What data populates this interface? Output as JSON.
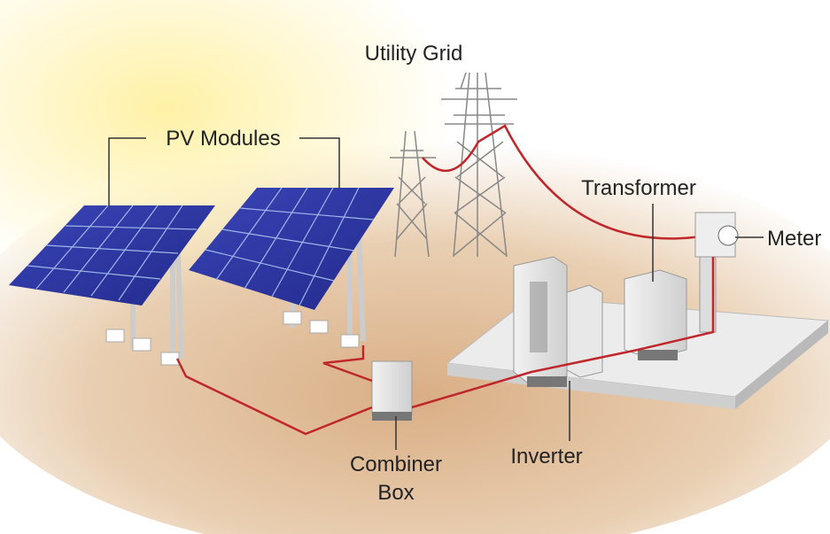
{
  "nodes": [
    {
      "label": "Utility Grid"
    },
    {
      "label": "PV Modules"
    },
    {
      "label": "Transformer"
    },
    {
      "label": "Meter"
    },
    {
      "label": [
        "Combiner",
        "Box"
      ]
    },
    {
      "label": "Inverter"
    }
  ]
}
